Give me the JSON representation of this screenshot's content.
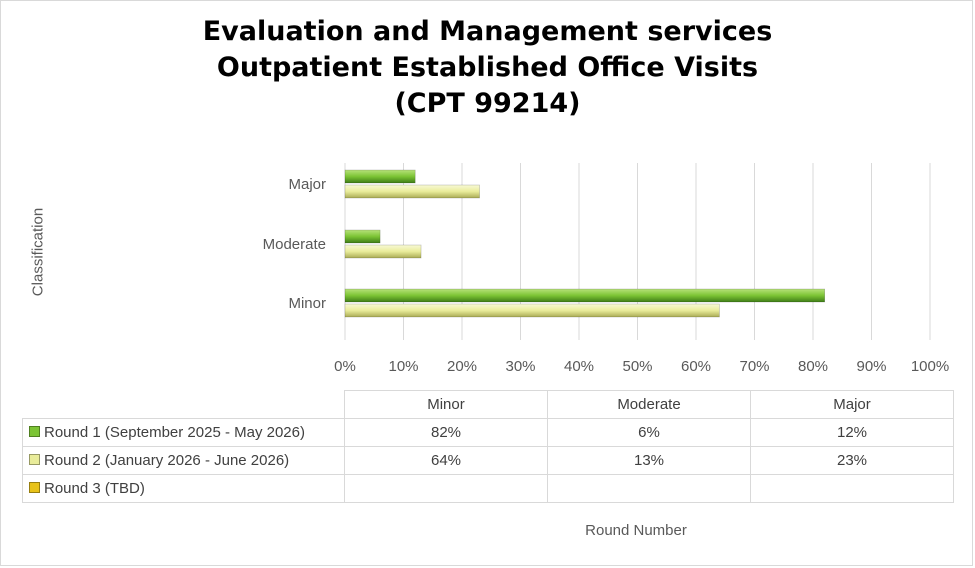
{
  "chart_data": {
    "type": "bar",
    "orientation": "horizontal",
    "title": [
      "Evaluation and Management services",
      "Outpatient Established Office Visits",
      "(CPT 99214)"
    ],
    "xlabel": "Round Number",
    "ylabel": "Classification",
    "categories": [
      "Minor",
      "Moderate",
      "Major"
    ],
    "x_ticks": [
      "0%",
      "10%",
      "20%",
      "30%",
      "40%",
      "50%",
      "60%",
      "70%",
      "80%",
      "90%",
      "100%"
    ],
    "xlim": [
      0,
      100
    ],
    "grid": true,
    "series": [
      {
        "name": "Round 1 (September 2025 - May 2026)",
        "values": [
          82,
          6,
          12
        ],
        "labels": [
          "82%",
          "6%",
          "12%"
        ],
        "color": "#7cc434"
      },
      {
        "name": "Round 2 (January 2026 - June 2026)",
        "values": [
          64,
          13,
          23
        ],
        "labels": [
          "64%",
          "13%",
          "23%"
        ],
        "color": "#e9ec9a"
      },
      {
        "name": "Round 3 (TBD)",
        "values": [
          null,
          null,
          null
        ],
        "labels": [
          "",
          "",
          ""
        ],
        "color": "#e8c21a"
      }
    ],
    "legend": "data-table"
  }
}
